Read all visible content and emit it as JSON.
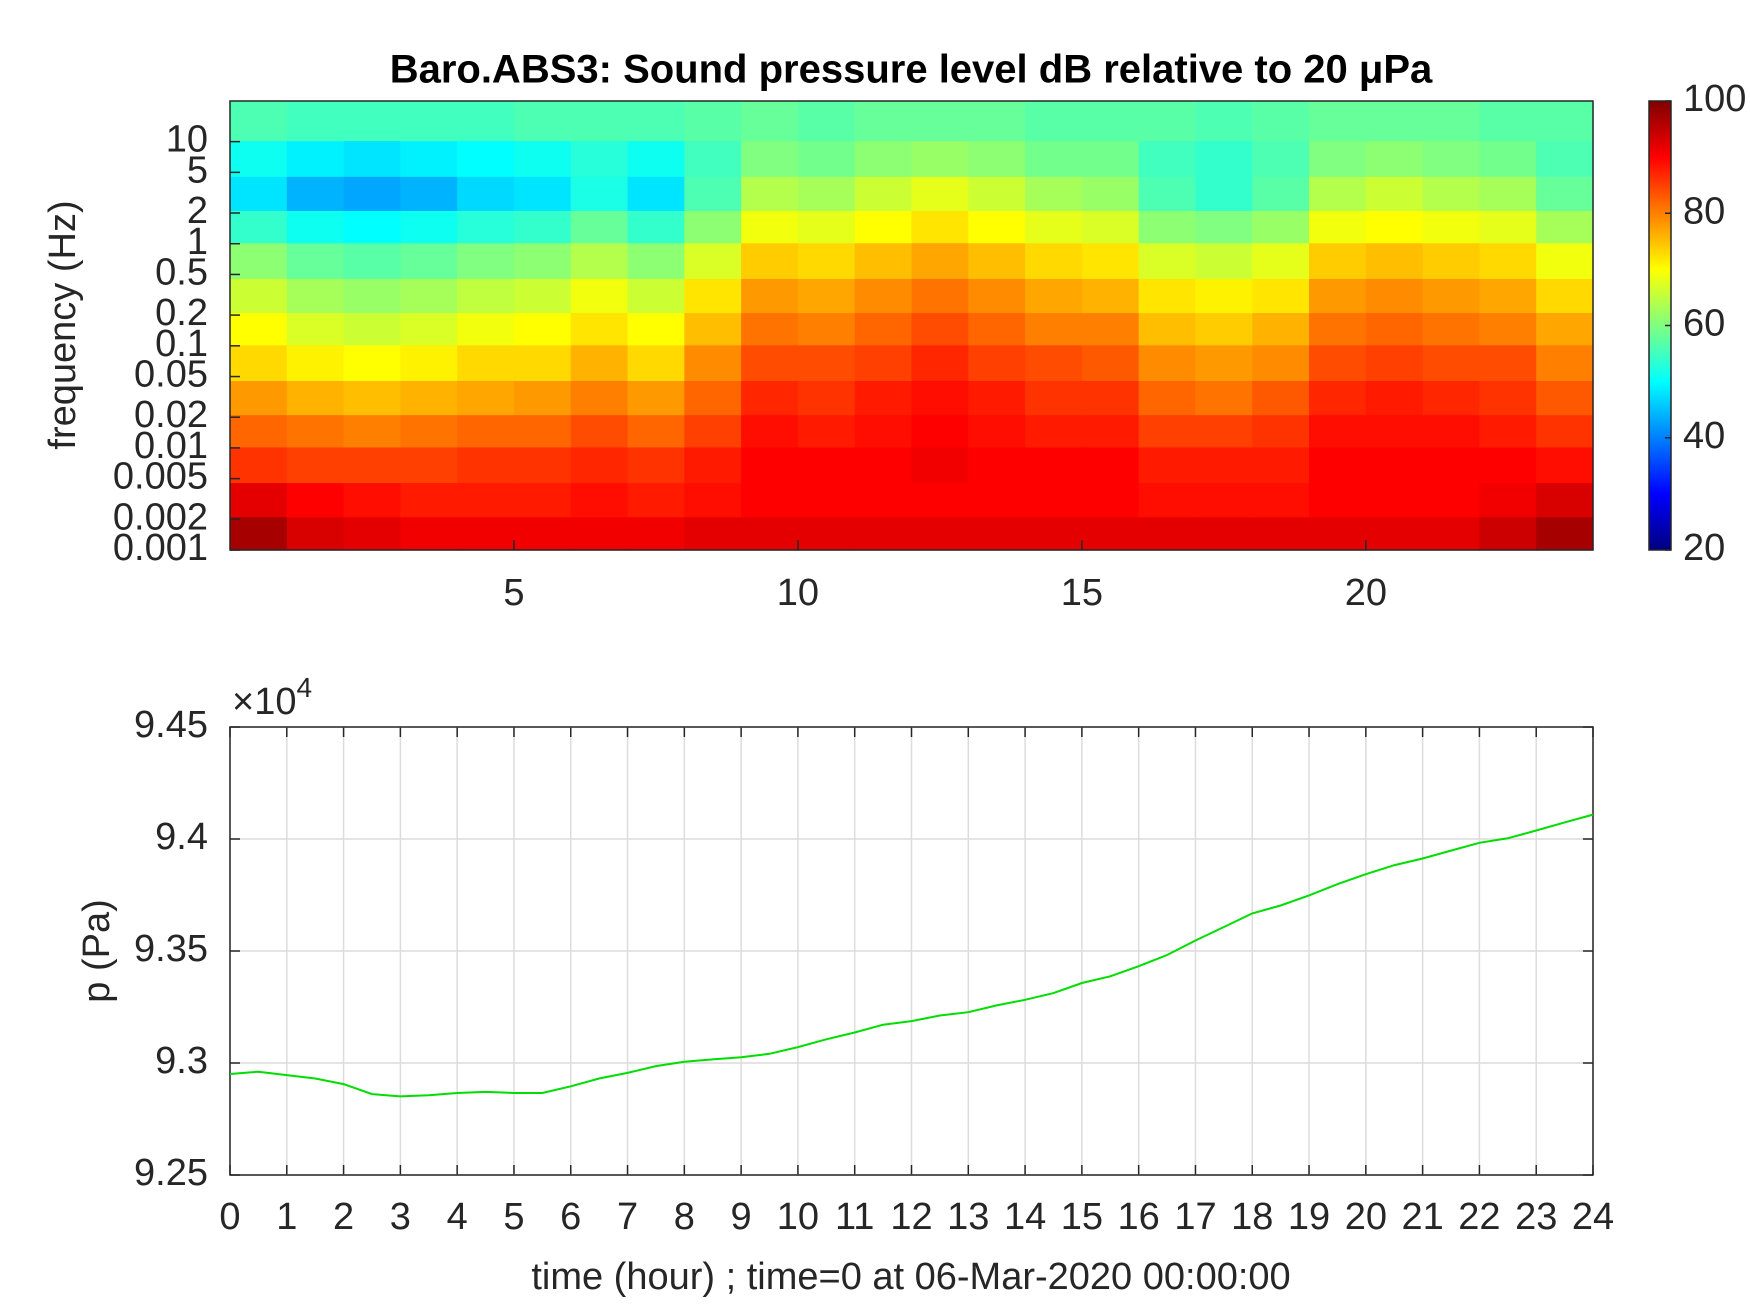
{
  "chart_data": [
    {
      "type": "heatmap",
      "title": "Baro.ABS3: Sound pressure level dB relative to 20 μPa",
      "ylabel": "frequency (Hz)",
      "x": [
        0.5,
        1.5,
        2.5,
        3.5,
        4.5,
        5.5,
        6.5,
        7.5,
        8.5,
        9.5,
        10.5,
        11.5,
        12.5,
        13.5,
        14.5,
        15.5,
        16.5,
        17.5,
        18.5,
        19.5,
        20.5,
        21.5,
        22.5,
        23.5
      ],
      "y": [
        0.0015,
        0.003,
        0.007,
        0.015,
        0.03,
        0.07,
        0.15,
        0.3,
        0.7,
        1.5,
        3,
        7,
        15
      ],
      "z": [
        [
          97,
          93,
          92,
          91,
          91,
          91,
          91,
          91,
          92,
          92,
          92,
          92,
          92,
          92,
          92,
          92,
          92,
          92,
          92,
          92,
          92,
          92,
          94,
          97
        ],
        [
          92,
          90,
          89,
          88,
          88,
          88,
          89,
          88,
          89,
          90,
          90,
          90,
          90,
          90,
          90,
          90,
          89,
          89,
          89,
          90,
          90,
          90,
          91,
          93
        ],
        [
          86,
          85,
          85,
          85,
          86,
          86,
          87,
          86,
          88,
          90,
          90,
          90,
          91,
          90,
          90,
          90,
          88,
          88,
          88,
          90,
          90,
          90,
          90,
          89
        ],
        [
          82,
          81,
          80,
          81,
          82,
          82,
          84,
          82,
          85,
          89,
          88,
          89,
          90,
          89,
          88,
          88,
          85,
          85,
          86,
          89,
          89,
          89,
          88,
          86
        ],
        [
          78,
          76,
          75,
          76,
          77,
          78,
          80,
          78,
          82,
          87,
          86,
          88,
          89,
          88,
          86,
          86,
          82,
          81,
          83,
          87,
          88,
          87,
          86,
          83
        ],
        [
          73,
          71,
          70,
          71,
          73,
          73,
          76,
          73,
          79,
          84,
          84,
          85,
          87,
          85,
          84,
          83,
          79,
          78,
          79,
          84,
          85,
          84,
          84,
          80
        ],
        [
          70,
          67,
          66,
          67,
          69,
          70,
          72,
          70,
          75,
          81,
          80,
          82,
          84,
          82,
          80,
          80,
          75,
          74,
          76,
          81,
          82,
          81,
          80,
          77
        ],
        [
          66,
          63,
          62,
          63,
          65,
          66,
          69,
          66,
          72,
          78,
          77,
          79,
          81,
          79,
          77,
          76,
          72,
          71,
          72,
          78,
          79,
          78,
          77,
          73
        ],
        [
          61,
          58,
          57,
          58,
          60,
          61,
          64,
          61,
          67,
          74,
          73,
          75,
          77,
          75,
          73,
          72,
          67,
          66,
          68,
          74,
          75,
          74,
          73,
          69
        ],
        [
          54,
          51,
          50,
          51,
          53,
          54,
          58,
          54,
          61,
          69,
          68,
          70,
          72,
          70,
          68,
          67,
          61,
          60,
          62,
          69,
          70,
          69,
          68,
          63
        ],
        [
          48,
          44,
          43,
          44,
          47,
          48,
          52,
          48,
          56,
          64,
          63,
          66,
          68,
          66,
          63,
          62,
          56,
          54,
          57,
          64,
          66,
          64,
          63,
          58
        ],
        [
          51,
          49,
          48,
          49,
          50,
          51,
          53,
          51,
          55,
          60,
          59,
          61,
          62,
          61,
          59,
          59,
          55,
          54,
          56,
          60,
          61,
          60,
          59,
          56
        ],
        [
          56,
          55,
          55,
          55,
          55,
          56,
          56,
          56,
          57,
          58,
          57,
          58,
          58,
          58,
          57,
          57,
          57,
          56,
          57,
          58,
          58,
          58,
          57,
          57
        ]
      ],
      "xlim": [
        0,
        24
      ],
      "xticks": [
        5,
        10,
        15,
        20
      ],
      "ylim": [
        0.001,
        25
      ],
      "yticks": [
        0.001,
        0.002,
        0.005,
        0.01,
        0.02,
        0.05,
        0.1,
        0.2,
        0.5,
        1,
        2,
        5,
        10
      ],
      "log_y": true,
      "colormap": "jet",
      "clim": [
        20,
        100
      ],
      "cticks": [
        20,
        40,
        60,
        80,
        100
      ]
    },
    {
      "type": "line",
      "xlabel": "time (hour) ; time=0 at 06-Mar-2020 00:00:00",
      "ylabel": "p (Pa)",
      "y_exponent_base": "×10",
      "y_exponent_power": "4",
      "x": [
        0,
        0.5,
        1,
        1.5,
        2,
        2.5,
        3,
        3.5,
        4,
        4.5,
        5,
        5.5,
        6,
        6.5,
        7,
        7.5,
        8,
        8.5,
        9,
        9.5,
        10,
        10.5,
        11,
        11.5,
        12,
        12.5,
        13,
        13.5,
        14,
        14.5,
        15,
        15.5,
        16,
        16.5,
        17,
        17.5,
        18,
        18.5,
        19,
        19.5,
        20,
        20.5,
        21,
        21.5,
        22,
        22.5,
        23,
        23.5,
        24
      ],
      "values": [
        92951,
        92961,
        92946,
        92931,
        92906,
        92861,
        92851,
        92856,
        92866,
        92871,
        92866,
        92866,
        92896,
        92931,
        92956,
        92986,
        93006,
        93016,
        93026,
        93041,
        93071,
        93106,
        93136,
        93171,
        93187,
        93212,
        93227,
        93257,
        93282,
        93312,
        93357,
        93387,
        93432,
        93482,
        93547,
        93607,
        93668,
        93703,
        93748,
        93798,
        93843,
        93883,
        93913,
        93948,
        93983,
        94003,
        94038,
        94074,
        94109
      ],
      "color": "#00dd00",
      "xlim": [
        0,
        24
      ],
      "xticks": [
        0,
        1,
        2,
        3,
        4,
        5,
        6,
        7,
        8,
        9,
        10,
        11,
        12,
        13,
        14,
        15,
        16,
        17,
        18,
        19,
        20,
        21,
        22,
        23,
        24
      ],
      "ylim": [
        92500,
        94500
      ],
      "yticks": [
        {
          "value": 92500,
          "label": "9.25"
        },
        {
          "value": 93000,
          "label": "9.3"
        },
        {
          "value": 93500,
          "label": "9.35"
        },
        {
          "value": 94000,
          "label": "9.4"
        },
        {
          "value": 94500,
          "label": "9.45"
        }
      ],
      "grid": true
    }
  ]
}
